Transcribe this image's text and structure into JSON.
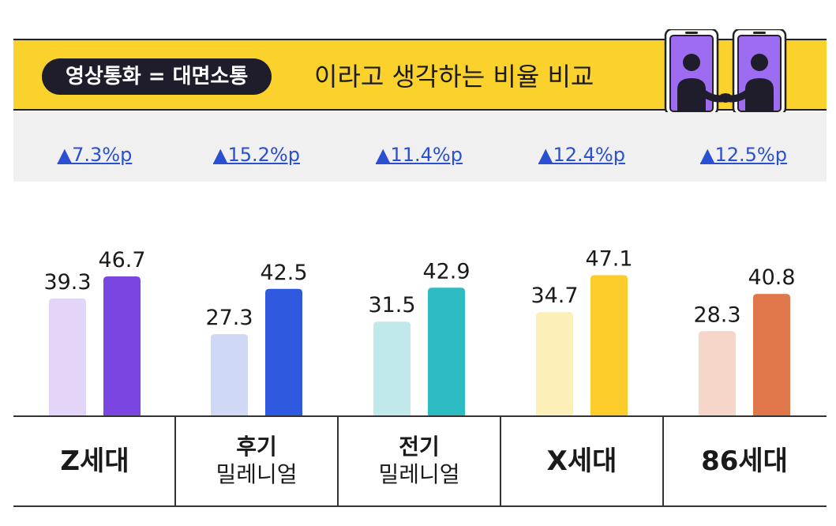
{
  "header": {
    "pill_text": "영상통화 = 대면소통",
    "subtitle": "이라고 생각하는 비율 비교"
  },
  "chart_data": {
    "type": "bar",
    "categories": [
      {
        "line1": "Z세대",
        "line2": ""
      },
      {
        "line1": "후기",
        "line2": "밀레니얼"
      },
      {
        "line1": "전기",
        "line2": "밀레니얼"
      },
      {
        "line1": "X세대",
        "line2": ""
      },
      {
        "line1": "86세대",
        "line2": ""
      }
    ],
    "series": [
      {
        "values": [
          39.3,
          27.3,
          31.5,
          34.7,
          28.3
        ]
      },
      {
        "values": [
          46.7,
          42.5,
          42.9,
          47.1,
          40.8
        ]
      }
    ],
    "value_labels": [
      [
        "39.3",
        "27.3",
        "31.5",
        "34.7",
        "28.3"
      ],
      [
        "46.7",
        "42.5",
        "42.9",
        "47.1",
        "40.8"
      ]
    ],
    "differences": [
      "▲7.3%p",
      "▲15.2%p",
      "▲11.4%p",
      "▲12.4%p",
      "▲12.5%p"
    ],
    "ylim": [
      0,
      100
    ],
    "grid": false,
    "legend": "none"
  },
  "colors": {
    "banner": "#fbd22b",
    "pill": "#1f1d2b",
    "difference_text": "#2a4fd0",
    "series_light": [
      "#e2d5f7",
      "#cfd9f6",
      "#bfe9ea",
      "#fdefb8",
      "#f6d6c8"
    ],
    "series_dark": [
      "#7a45e0",
      "#2f5ae0",
      "#2dbcc1",
      "#fbcc2a",
      "#e0774a"
    ]
  }
}
